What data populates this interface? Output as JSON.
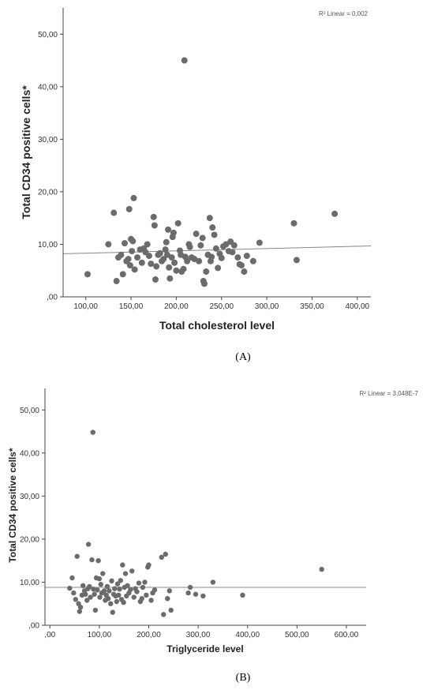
{
  "chart_data": [
    {
      "type": "scatter",
      "xlabel": "Total cholesterol level",
      "ylabel": "Total CD34 positive cells*",
      "r2_label": "R² Linear = 0,002",
      "panel_label": "(A)",
      "xlim": [
        75,
        415
      ],
      "ylim": [
        0,
        55
      ],
      "x_ticks": [
        "100,00",
        "150,00",
        "200,00",
        "250,00",
        "300,00",
        "350,00",
        "400,00"
      ],
      "x_tick_values": [
        100,
        150,
        200,
        250,
        300,
        350,
        400
      ],
      "y_ticks": [
        ",00",
        "10,00",
        "20,00",
        "30,00",
        "40,00",
        "50,00"
      ],
      "y_tick_values": [
        0,
        10,
        20,
        30,
        40,
        50
      ],
      "fit_line": [
        [
          75,
          8.2
        ],
        [
          415,
          9.7
        ]
      ],
      "points": [
        [
          102,
          4.3
        ],
        [
          125,
          10
        ],
        [
          131,
          16
        ],
        [
          134,
          3
        ],
        [
          136,
          7.5
        ],
        [
          139,
          8
        ],
        [
          141,
          4.3
        ],
        [
          143,
          10.2
        ],
        [
          145,
          6.8
        ],
        [
          147,
          7.2
        ],
        [
          148,
          16.7
        ],
        [
          149,
          6
        ],
        [
          150,
          11
        ],
        [
          151,
          8.7
        ],
        [
          152,
          10.6
        ],
        [
          153,
          18.8
        ],
        [
          154,
          5.2
        ],
        [
          157,
          7.5
        ],
        [
          160,
          9
        ],
        [
          162,
          6.5
        ],
        [
          164,
          9.2
        ],
        [
          166,
          8.5
        ],
        [
          168,
          10
        ],
        [
          170,
          7.8
        ],
        [
          172,
          6.3
        ],
        [
          175,
          15.2
        ],
        [
          176,
          13.6
        ],
        [
          177,
          3.3
        ],
        [
          178,
          5.8
        ],
        [
          180,
          8
        ],
        [
          182,
          8.3
        ],
        [
          184,
          6.8
        ],
        [
          186,
          7.2
        ],
        [
          188,
          9
        ],
        [
          189,
          10.4
        ],
        [
          190,
          8
        ],
        [
          191,
          12.8
        ],
        [
          192,
          5.6
        ],
        [
          193,
          3.5
        ],
        [
          195,
          7.5
        ],
        [
          196,
          11.4
        ],
        [
          197,
          12.2
        ],
        [
          198,
          6.5
        ],
        [
          200,
          5
        ],
        [
          202,
          14
        ],
        [
          204,
          8.8
        ],
        [
          205,
          8
        ],
        [
          206,
          4.8
        ],
        [
          208,
          5.3
        ],
        [
          209,
          45
        ],
        [
          210,
          7.6
        ],
        [
          212,
          6.8
        ],
        [
          214,
          10
        ],
        [
          215,
          9.5
        ],
        [
          217,
          7.5
        ],
        [
          220,
          7.2
        ],
        [
          222,
          12
        ],
        [
          225,
          6.8
        ],
        [
          227,
          9.8
        ],
        [
          229,
          11.2
        ],
        [
          230,
          3
        ],
        [
          231,
          2.5
        ],
        [
          233,
          4.8
        ],
        [
          235,
          8
        ],
        [
          237,
          15
        ],
        [
          238,
          6.8
        ],
        [
          239,
          7.6
        ],
        [
          240,
          13.2
        ],
        [
          242,
          11.8
        ],
        [
          244,
          9.2
        ],
        [
          246,
          5.5
        ],
        [
          248,
          8.2
        ],
        [
          250,
          7.4
        ],
        [
          252,
          9.6
        ],
        [
          255,
          10
        ],
        [
          258,
          8.7
        ],
        [
          260,
          10.5
        ],
        [
          262,
          8.5
        ],
        [
          264,
          9.8
        ],
        [
          268,
          7.5
        ],
        [
          270,
          6.2
        ],
        [
          272,
          6
        ],
        [
          275,
          4.8
        ],
        [
          278,
          7.8
        ],
        [
          285,
          6.8
        ],
        [
          292,
          10.3
        ],
        [
          330,
          14
        ],
        [
          333,
          7
        ],
        [
          375,
          15.8
        ]
      ]
    },
    {
      "type": "scatter",
      "xlabel": "Triglyceride level",
      "ylabel": "Total CD34 positive cells*",
      "r2_label": "R² Linear = 3,048E-7",
      "panel_label": "(B)",
      "xlim": [
        -10,
        640
      ],
      "ylim": [
        0,
        55
      ],
      "x_ticks": [
        ",00",
        "100,00",
        "200,00",
        "300,00",
        "400,00",
        "500,00",
        "600,00"
      ],
      "x_tick_values": [
        0,
        100,
        200,
        300,
        400,
        500,
        600
      ],
      "y_ticks": [
        ",00",
        "10,00",
        "20,00",
        "30,00",
        "40,00",
        "50,00"
      ],
      "y_tick_values": [
        0,
        10,
        20,
        30,
        40,
        50
      ],
      "fit_line": [
        [
          -10,
          8.8
        ],
        [
          640,
          8.8
        ]
      ],
      "points": [
        [
          40,
          8.6
        ],
        [
          45,
          11
        ],
        [
          48,
          7.5
        ],
        [
          52,
          6
        ],
        [
          55,
          16
        ],
        [
          58,
          5
        ],
        [
          60,
          3.2
        ],
        [
          62,
          4.2
        ],
        [
          65,
          7
        ],
        [
          67,
          9.2
        ],
        [
          70,
          8
        ],
        [
          72,
          7.2
        ],
        [
          75,
          5.8
        ],
        [
          77,
          8.5
        ],
        [
          78,
          18.8
        ],
        [
          80,
          9
        ],
        [
          82,
          6.5
        ],
        [
          85,
          15.2
        ],
        [
          87,
          44.8
        ],
        [
          88,
          8.4
        ],
        [
          90,
          7.2
        ],
        [
          92,
          3.5
        ],
        [
          94,
          11
        ],
        [
          96,
          8.2
        ],
        [
          98,
          15
        ],
        [
          100,
          10.8
        ],
        [
          101,
          6.5
        ],
        [
          103,
          9.5
        ],
        [
          105,
          7.5
        ],
        [
          107,
          12
        ],
        [
          110,
          8
        ],
        [
          112,
          5.8
        ],
        [
          114,
          7
        ],
        [
          116,
          9
        ],
        [
          118,
          6.2
        ],
        [
          120,
          8
        ],
        [
          123,
          5
        ],
        [
          125,
          10.3
        ],
        [
          127,
          3
        ],
        [
          129,
          7.2
        ],
        [
          131,
          8.5
        ],
        [
          133,
          6.8
        ],
        [
          135,
          5.5
        ],
        [
          137,
          9.6
        ],
        [
          139,
          7
        ],
        [
          141,
          8.4
        ],
        [
          143,
          10.4
        ],
        [
          145,
          6
        ],
        [
          147,
          14
        ],
        [
          149,
          5.3
        ],
        [
          151,
          8.8
        ],
        [
          153,
          12
        ],
        [
          155,
          6.8
        ],
        [
          157,
          9.2
        ],
        [
          160,
          7.5
        ],
        [
          163,
          8.3
        ],
        [
          166,
          12.6
        ],
        [
          170,
          6.5
        ],
        [
          173,
          8.5
        ],
        [
          176,
          7.8
        ],
        [
          180,
          9.8
        ],
        [
          183,
          5.5
        ],
        [
          186,
          6.2
        ],
        [
          188,
          8.8
        ],
        [
          192,
          10
        ],
        [
          195,
          7
        ],
        [
          198,
          13.5
        ],
        [
          200,
          14
        ],
        [
          205,
          5.8
        ],
        [
          208,
          7.5
        ],
        [
          212,
          8.2
        ],
        [
          226,
          15.8
        ],
        [
          230,
          2.5
        ],
        [
          234,
          16.5
        ],
        [
          238,
          6.2
        ],
        [
          242,
          8
        ],
        [
          245,
          3.5
        ],
        [
          280,
          7.5
        ],
        [
          284,
          8.8
        ],
        [
          295,
          7.2
        ],
        [
          310,
          6.8
        ],
        [
          330,
          10
        ],
        [
          390,
          7
        ],
        [
          550,
          13
        ]
      ]
    }
  ]
}
